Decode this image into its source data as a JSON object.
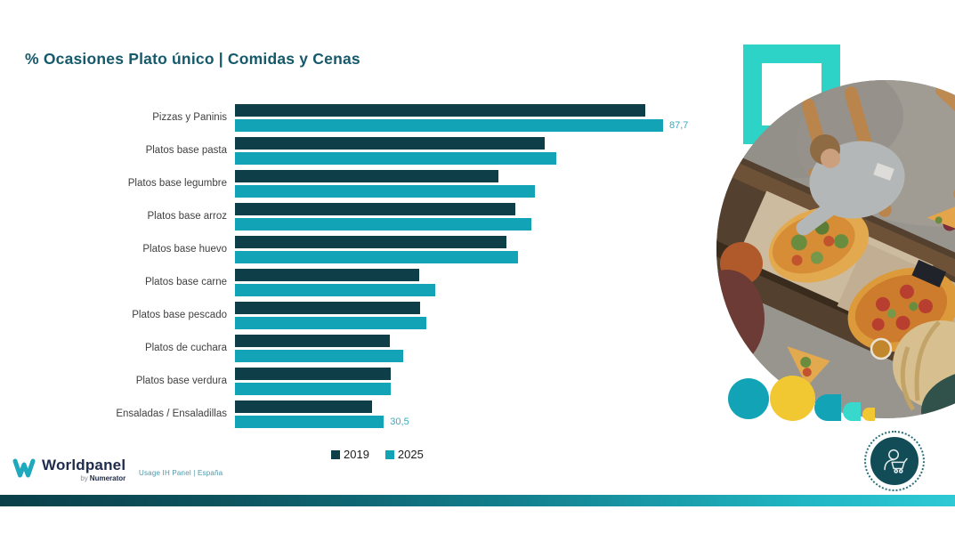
{
  "slide": {
    "title": "% Ocasiones Plato único | Comidas y Cenas",
    "footer": {
      "brand": "Worldpanel",
      "brand_by": "by",
      "brand_sub": "Numerator",
      "source_note": "Usage IH Panel | España"
    },
    "brand_colors": {
      "dark_teal": "#0e3e47",
      "teal": "#12a3b6",
      "bright_turquoise": "#2ed3c8",
      "yellow": "#f2c832",
      "title_teal": "#15596b",
      "value_label_teal": "#3fa9bc"
    },
    "icons": {
      "shopper_badge": "person-with-shopping-cart-icon",
      "logo_mark": "worldpanel-w-icon"
    }
  },
  "chart_data": {
    "type": "bar",
    "orientation": "horizontal",
    "title": "% Ocasiones Plato único | Comidas y Cenas",
    "categories": [
      "Pizzas y Paninis",
      "Platos base pasta",
      "Platos base legumbre",
      "Platos base arroz",
      "Platos base huevo",
      "Platos base carne",
      "Platos base pescado",
      "Platos de cuchara",
      "Platos base verdura",
      "Ensaladas / Ensaladillas"
    ],
    "series": [
      {
        "name": "2019",
        "color": "#0e3e47",
        "values": [
          84.1,
          63.4,
          54.0,
          57.4,
          55.6,
          37.7,
          37.9,
          31.7,
          31.9,
          28.1
        ]
      },
      {
        "name": "2025",
        "color": "#12a3b6",
        "values": [
          87.7,
          65.8,
          61.4,
          60.7,
          58.0,
          41.0,
          39.2,
          34.5,
          31.9,
          30.5
        ]
      }
    ],
    "data_labels": [
      {
        "series_index": 1,
        "category_index": 0,
        "text": "87,7"
      },
      {
        "series_index": 1,
        "category_index": 9,
        "text": "30,5"
      }
    ],
    "xlim": [
      0,
      100
    ],
    "grid": false,
    "legend_position": "bottom"
  }
}
